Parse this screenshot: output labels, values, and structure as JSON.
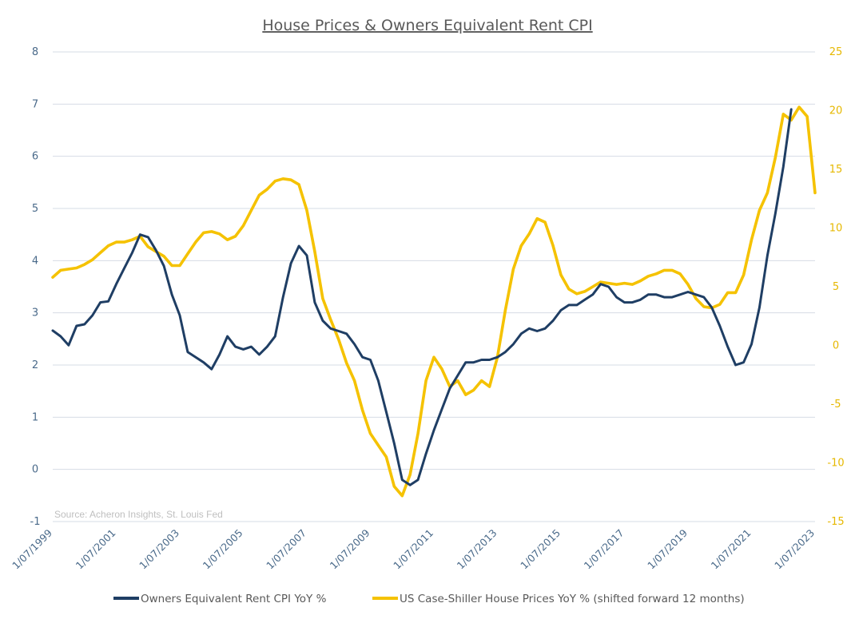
{
  "chart_data": {
    "type": "line",
    "title": "House Prices & Owners Equivalent Rent CPI",
    "source": "Source: Acheron Insights, St. Louis Fed",
    "x_tick_labels": [
      "1/07/1999",
      "1/07/2001",
      "1/07/2003",
      "1/07/2005",
      "1/07/2007",
      "1/07/2009",
      "1/07/2011",
      "1/07/2013",
      "1/07/2015",
      "1/07/2017",
      "1/07/2019",
      "1/07/2021",
      "1/07/2023"
    ],
    "x_range": [
      "1999-07",
      "2023-07"
    ],
    "y_left": {
      "range": [
        -1,
        8
      ],
      "ticks": [
        -1,
        0,
        1,
        2,
        3,
        4,
        5,
        6,
        7,
        8
      ]
    },
    "y_right": {
      "range": [
        -15,
        25
      ],
      "ticks": [
        -15,
        -10,
        -5,
        0,
        5,
        10,
        15,
        20,
        25
      ]
    },
    "grid": true,
    "legend_position": "bottom",
    "series": [
      {
        "name": "Owners Equivalent Rent CPI YoY %",
        "axis": "left",
        "color": "#1f3e64",
        "points": [
          [
            "1999-07",
            2.66
          ],
          [
            "1999-10",
            2.55
          ],
          [
            "2000-01",
            2.38
          ],
          [
            "2000-04",
            2.75
          ],
          [
            "2000-07",
            2.78
          ],
          [
            "2000-10",
            2.95
          ],
          [
            "2001-01",
            3.2
          ],
          [
            "2001-04",
            3.22
          ],
          [
            "2001-07",
            3.55
          ],
          [
            "2001-10",
            3.85
          ],
          [
            "2002-01",
            4.15
          ],
          [
            "2002-04",
            4.5
          ],
          [
            "2002-07",
            4.45
          ],
          [
            "2002-10",
            4.2
          ],
          [
            "2003-01",
            3.9
          ],
          [
            "2003-04",
            3.35
          ],
          [
            "2003-07",
            2.95
          ],
          [
            "2003-10",
            2.25
          ],
          [
            "2004-01",
            2.15
          ],
          [
            "2004-04",
            2.05
          ],
          [
            "2004-07",
            1.92
          ],
          [
            "2004-10",
            2.2
          ],
          [
            "2005-01",
            2.55
          ],
          [
            "2005-04",
            2.35
          ],
          [
            "2005-07",
            2.3
          ],
          [
            "2005-10",
            2.35
          ],
          [
            "2006-01",
            2.2
          ],
          [
            "2006-04",
            2.35
          ],
          [
            "2006-07",
            2.55
          ],
          [
            "2006-10",
            3.3
          ],
          [
            "2007-01",
            3.95
          ],
          [
            "2007-04",
            4.28
          ],
          [
            "2007-07",
            4.1
          ],
          [
            "2007-10",
            3.2
          ],
          [
            "2008-01",
            2.85
          ],
          [
            "2008-04",
            2.7
          ],
          [
            "2008-07",
            2.65
          ],
          [
            "2008-10",
            2.6
          ],
          [
            "2009-01",
            2.4
          ],
          [
            "2009-04",
            2.15
          ],
          [
            "2009-07",
            2.1
          ],
          [
            "2009-10",
            1.7
          ],
          [
            "2010-01",
            1.1
          ],
          [
            "2010-04",
            0.5
          ],
          [
            "2010-07",
            -0.2
          ],
          [
            "2010-10",
            -0.3
          ],
          [
            "2011-01",
            -0.2
          ],
          [
            "2011-04",
            0.3
          ],
          [
            "2011-07",
            0.75
          ],
          [
            "2011-10",
            1.15
          ],
          [
            "2012-01",
            1.55
          ],
          [
            "2012-04",
            1.8
          ],
          [
            "2012-07",
            2.05
          ],
          [
            "2012-10",
            2.05
          ],
          [
            "2013-01",
            2.1
          ],
          [
            "2013-04",
            2.1
          ],
          [
            "2013-07",
            2.15
          ],
          [
            "2013-10",
            2.25
          ],
          [
            "2014-01",
            2.4
          ],
          [
            "2014-04",
            2.6
          ],
          [
            "2014-07",
            2.7
          ],
          [
            "2014-10",
            2.65
          ],
          [
            "2015-01",
            2.7
          ],
          [
            "2015-04",
            2.85
          ],
          [
            "2015-07",
            3.05
          ],
          [
            "2015-10",
            3.15
          ],
          [
            "2016-01",
            3.15
          ],
          [
            "2016-04",
            3.25
          ],
          [
            "2016-07",
            3.35
          ],
          [
            "2016-10",
            3.55
          ],
          [
            "2017-01",
            3.5
          ],
          [
            "2017-04",
            3.3
          ],
          [
            "2017-07",
            3.2
          ],
          [
            "2017-10",
            3.2
          ],
          [
            "2018-01",
            3.25
          ],
          [
            "2018-04",
            3.35
          ],
          [
            "2018-07",
            3.35
          ],
          [
            "2018-10",
            3.3
          ],
          [
            "2019-01",
            3.3
          ],
          [
            "2019-04",
            3.35
          ],
          [
            "2019-07",
            3.4
          ],
          [
            "2019-10",
            3.35
          ],
          [
            "2020-01",
            3.3
          ],
          [
            "2020-04",
            3.1
          ],
          [
            "2020-07",
            2.75
          ],
          [
            "2020-10",
            2.35
          ],
          [
            "2021-01",
            2.0
          ],
          [
            "2021-04",
            2.05
          ],
          [
            "2021-07",
            2.4
          ],
          [
            "2021-10",
            3.1
          ],
          [
            "2022-01",
            4.1
          ],
          [
            "2022-04",
            4.9
          ],
          [
            "2022-07",
            5.8
          ],
          [
            "2022-10",
            6.9
          ]
        ]
      },
      {
        "name": "US Case-Shiller House Prices YoY % (shifted forward 12 months)",
        "axis": "right",
        "color": "#f5c200",
        "points": [
          [
            "1999-07",
            5.8
          ],
          [
            "1999-10",
            6.4
          ],
          [
            "2000-01",
            6.5
          ],
          [
            "2000-04",
            6.6
          ],
          [
            "2000-07",
            6.9
          ],
          [
            "2000-10",
            7.3
          ],
          [
            "2001-01",
            7.9
          ],
          [
            "2001-04",
            8.5
          ],
          [
            "2001-07",
            8.8
          ],
          [
            "2001-10",
            8.8
          ],
          [
            "2002-01",
            9.0
          ],
          [
            "2002-04",
            9.3
          ],
          [
            "2002-07",
            8.4
          ],
          [
            "2002-10",
            8.0
          ],
          [
            "2003-01",
            7.6
          ],
          [
            "2003-04",
            6.8
          ],
          [
            "2003-07",
            6.8
          ],
          [
            "2003-10",
            7.8
          ],
          [
            "2004-01",
            8.8
          ],
          [
            "2004-04",
            9.6
          ],
          [
            "2004-07",
            9.7
          ],
          [
            "2004-10",
            9.5
          ],
          [
            "2005-01",
            9.0
          ],
          [
            "2005-04",
            9.3
          ],
          [
            "2005-07",
            10.2
          ],
          [
            "2005-10",
            11.5
          ],
          [
            "2006-01",
            12.8
          ],
          [
            "2006-04",
            13.3
          ],
          [
            "2006-07",
            14.0
          ],
          [
            "2006-10",
            14.2
          ],
          [
            "2007-01",
            14.1
          ],
          [
            "2007-04",
            13.7
          ],
          [
            "2007-07",
            11.5
          ],
          [
            "2007-10",
            8.0
          ],
          [
            "2008-01",
            4.0
          ],
          [
            "2008-04",
            2.2
          ],
          [
            "2008-07",
            0.5
          ],
          [
            "2008-10",
            -1.5
          ],
          [
            "2009-01",
            -3.0
          ],
          [
            "2009-04",
            -5.5
          ],
          [
            "2009-07",
            -7.5
          ],
          [
            "2009-10",
            -8.5
          ],
          [
            "2010-01",
            -9.5
          ],
          [
            "2010-04",
            -12.0
          ],
          [
            "2010-07",
            -12.8
          ],
          [
            "2010-10",
            -11.0
          ],
          [
            "2011-01",
            -7.5
          ],
          [
            "2011-04",
            -3.0
          ],
          [
            "2011-07",
            -1.0
          ],
          [
            "2011-10",
            -2.0
          ],
          [
            "2012-01",
            -3.5
          ],
          [
            "2012-04",
            -3.0
          ],
          [
            "2012-07",
            -4.2
          ],
          [
            "2012-10",
            -3.8
          ],
          [
            "2013-01",
            -3.0
          ],
          [
            "2013-04",
            -3.5
          ],
          [
            "2013-07",
            -1.0
          ],
          [
            "2013-10",
            3.0
          ],
          [
            "2014-01",
            6.5
          ],
          [
            "2014-04",
            8.5
          ],
          [
            "2014-07",
            9.5
          ],
          [
            "2014-10",
            10.8
          ],
          [
            "2015-01",
            10.5
          ],
          [
            "2015-04",
            8.5
          ],
          [
            "2015-07",
            6.0
          ],
          [
            "2015-10",
            4.8
          ],
          [
            "2016-01",
            4.4
          ],
          [
            "2016-04",
            4.6
          ],
          [
            "2016-07",
            5.0
          ],
          [
            "2016-10",
            5.4
          ],
          [
            "2017-01",
            5.3
          ],
          [
            "2017-04",
            5.2
          ],
          [
            "2017-07",
            5.3
          ],
          [
            "2017-10",
            5.2
          ],
          [
            "2018-01",
            5.5
          ],
          [
            "2018-04",
            5.9
          ],
          [
            "2018-07",
            6.1
          ],
          [
            "2018-10",
            6.4
          ],
          [
            "2019-01",
            6.4
          ],
          [
            "2019-04",
            6.1
          ],
          [
            "2019-07",
            5.2
          ],
          [
            "2019-10",
            4.0
          ],
          [
            "2020-01",
            3.3
          ],
          [
            "2020-04",
            3.2
          ],
          [
            "2020-07",
            3.5
          ],
          [
            "2020-10",
            4.5
          ],
          [
            "2021-01",
            4.5
          ],
          [
            "2021-04",
            6.0
          ],
          [
            "2021-07",
            9.0
          ],
          [
            "2021-10",
            11.5
          ],
          [
            "2022-01",
            13.0
          ],
          [
            "2022-04",
            16.0
          ],
          [
            "2022-07",
            19.7
          ],
          [
            "2022-10",
            19.2
          ],
          [
            "2023-01",
            20.3
          ],
          [
            "2023-04",
            19.5
          ],
          [
            "2023-07",
            13.0
          ]
        ]
      }
    ]
  }
}
